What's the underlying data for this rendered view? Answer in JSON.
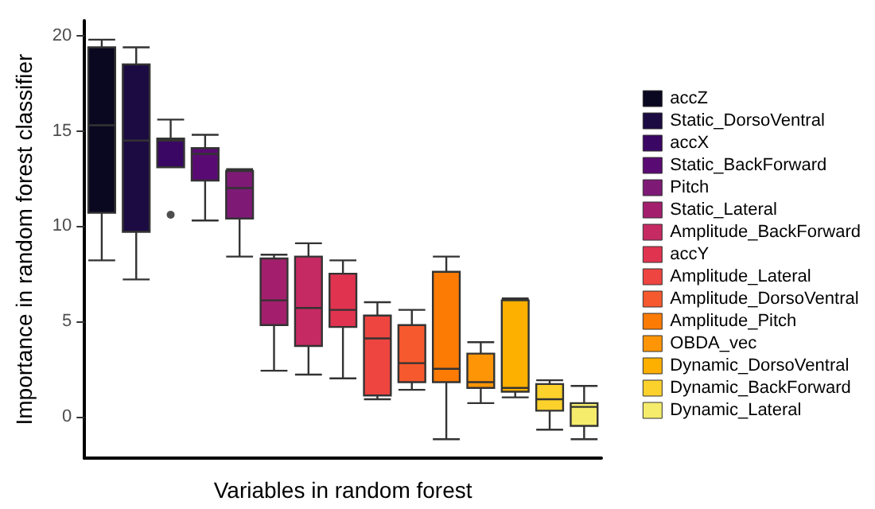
{
  "chart_data": {
    "type": "box",
    "xlabel": "Variables in random forest",
    "ylabel": "Importance in random forest classifier",
    "categories": [
      null,
      null,
      null,
      null,
      null,
      null,
      null,
      null,
      null,
      null,
      null,
      null,
      null,
      null,
      null
    ],
    "ylim": [
      -2.2,
      20.8
    ],
    "yticks": [
      0,
      5,
      10,
      15,
      20
    ],
    "grid": false,
    "legend": "right",
    "series": [
      {
        "name": "accZ",
        "color": "#0a0720",
        "boxes": [
          {
            "low": 8.2,
            "q1": 10.7,
            "median": 15.3,
            "q3": 19.4,
            "high": 19.8
          },
          null,
          null,
          null,
          null,
          null,
          null,
          null,
          null,
          null,
          null,
          null,
          null,
          null,
          null
        ]
      },
      {
        "name": "Static_DorsoVentral",
        "color": "#1c0b42",
        "boxes": [
          null,
          {
            "low": 7.2,
            "q1": 9.7,
            "median": 14.5,
            "q3": 18.5,
            "high": 19.4
          },
          null,
          null,
          null,
          null,
          null,
          null,
          null,
          null,
          null,
          null,
          null,
          null,
          null
        ]
      },
      {
        "name": "accX",
        "color": "#3b0764",
        "boxes": [
          null,
          null,
          {
            "low": 13.1,
            "q1": 13.1,
            "median": 14.5,
            "q3": 14.6,
            "high": 15.6,
            "outliers": [
              10.6
            ]
          },
          null,
          null,
          null,
          null,
          null,
          null,
          null,
          null,
          null,
          null,
          null,
          null
        ]
      },
      {
        "name": "Static_BackForward",
        "color": "#5a0b73",
        "boxes": [
          null,
          null,
          null,
          {
            "low": 10.3,
            "q1": 12.4,
            "median": 13.8,
            "q3": 14.1,
            "high": 14.8
          },
          null,
          null,
          null,
          null,
          null,
          null,
          null,
          null,
          null,
          null,
          null
        ]
      },
      {
        "name": "Pitch",
        "color": "#7e1a76",
        "boxes": [
          null,
          null,
          null,
          null,
          {
            "low": 8.4,
            "q1": 10.4,
            "median": 12.0,
            "q3": 12.9,
            "high": 13.0
          },
          null,
          null,
          null,
          null,
          null,
          null,
          null,
          null,
          null,
          null
        ]
      },
      {
        "name": "Static_Lateral",
        "color": "#a31f6d",
        "boxes": [
          null,
          null,
          null,
          null,
          null,
          {
            "low": 2.4,
            "q1": 4.8,
            "median": 6.1,
            "q3": 8.3,
            "high": 8.5
          },
          null,
          null,
          null,
          null,
          null,
          null,
          null,
          null,
          null
        ]
      },
      {
        "name": "Amplitude_BackForward",
        "color": "#c62a62",
        "boxes": [
          null,
          null,
          null,
          null,
          null,
          null,
          {
            "low": 2.2,
            "q1": 3.7,
            "median": 5.7,
            "q3": 8.4,
            "high": 9.1
          },
          null,
          null,
          null,
          null,
          null,
          null,
          null,
          null
        ]
      },
      {
        "name": "accY",
        "color": "#e0334f",
        "boxes": [
          null,
          null,
          null,
          null,
          null,
          null,
          null,
          {
            "low": 2.0,
            "q1": 4.7,
            "median": 5.6,
            "q3": 7.5,
            "high": 8.2
          },
          null,
          null,
          null,
          null,
          null,
          null,
          null
        ]
      },
      {
        "name": "Amplitude_Lateral",
        "color": "#ee4540",
        "boxes": [
          null,
          null,
          null,
          null,
          null,
          null,
          null,
          null,
          {
            "low": 0.9,
            "q1": 1.1,
            "median": 4.1,
            "q3": 5.3,
            "high": 6.0
          },
          null,
          null,
          null,
          null,
          null,
          null
        ]
      },
      {
        "name": "Amplitude_DorsoVentral",
        "color": "#f6592e",
        "boxes": [
          null,
          null,
          null,
          null,
          null,
          null,
          null,
          null,
          null,
          {
            "low": 1.4,
            "q1": 1.8,
            "median": 2.8,
            "q3": 4.8,
            "high": 5.6
          },
          null,
          null,
          null,
          null,
          null
        ]
      },
      {
        "name": "Amplitude_Pitch",
        "color": "#fb7b05",
        "boxes": [
          null,
          null,
          null,
          null,
          null,
          null,
          null,
          null,
          null,
          null,
          {
            "low": -1.2,
            "q1": 1.8,
            "median": 2.5,
            "q3": 7.6,
            "high": 8.4
          },
          null,
          null,
          null,
          null
        ]
      },
      {
        "name": "OBDA_vec",
        "color": "#fd9506",
        "boxes": [
          null,
          null,
          null,
          null,
          null,
          null,
          null,
          null,
          null,
          null,
          null,
          {
            "low": 0.7,
            "q1": 1.5,
            "median": 1.8,
            "q3": 3.3,
            "high": 3.9
          },
          null,
          null,
          null
        ]
      },
      {
        "name": "Dynamic_DorsoVentral",
        "color": "#fdb000",
        "boxes": [
          null,
          null,
          null,
          null,
          null,
          null,
          null,
          null,
          null,
          null,
          null,
          null,
          {
            "low": 1.0,
            "q1": 1.3,
            "median": 1.5,
            "q3": 6.1,
            "high": 6.2
          },
          null,
          null
        ]
      },
      {
        "name": "Dynamic_BackForward",
        "color": "#fdd12c",
        "boxes": [
          null,
          null,
          null,
          null,
          null,
          null,
          null,
          null,
          null,
          null,
          null,
          null,
          null,
          {
            "low": -0.7,
            "q1": 0.3,
            "median": 0.9,
            "q3": 1.7,
            "high": 1.9
          },
          null
        ]
      },
      {
        "name": "Dynamic_Lateral",
        "color": "#f4ec6a",
        "boxes": [
          null,
          null,
          null,
          null,
          null,
          null,
          null,
          null,
          null,
          null,
          null,
          null,
          null,
          null,
          {
            "low": -1.2,
            "q1": -0.5,
            "median": 0.5,
            "q3": 0.7,
            "high": 1.6
          }
        ]
      }
    ]
  }
}
